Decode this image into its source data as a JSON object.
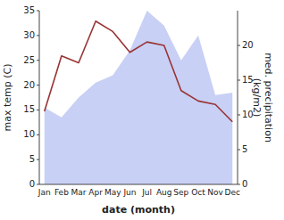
{
  "chart_data": {
    "type": "area",
    "categories": [
      "Jan",
      "Feb",
      "Mar",
      "Apr",
      "May",
      "Jun",
      "Jul",
      "Aug",
      "Sep",
      "Oct",
      "Nov",
      "Dec"
    ],
    "xlabel": "date (month)",
    "ylabel": "max temp (C)",
    "y2label": "med. precipitation\n(kg/m2)",
    "series": [
      {
        "type": "area",
        "color": "#c8d0f5",
        "values": [
          15.5,
          13.5,
          17.5,
          20.5,
          22.0,
          27.0,
          35.0,
          32.0,
          25.0,
          30.0,
          18.0,
          18.5
        ]
      },
      {
        "type": "line",
        "axis": "y2",
        "color": "#993333",
        "values": [
          10.5,
          18.5,
          17.5,
          23.5,
          22.0,
          19.0,
          20.5,
          20.0,
          13.5,
          12.0,
          11.5,
          9.0
        ]
      }
    ],
    "ylim": [
      0,
      35
    ],
    "yticks": [
      0,
      5,
      10,
      15,
      20,
      25,
      30,
      35
    ],
    "y2lim": [
      0,
      25
    ],
    "y2ticks": [
      0,
      5,
      10,
      15,
      20
    ],
    "grid": false
  }
}
